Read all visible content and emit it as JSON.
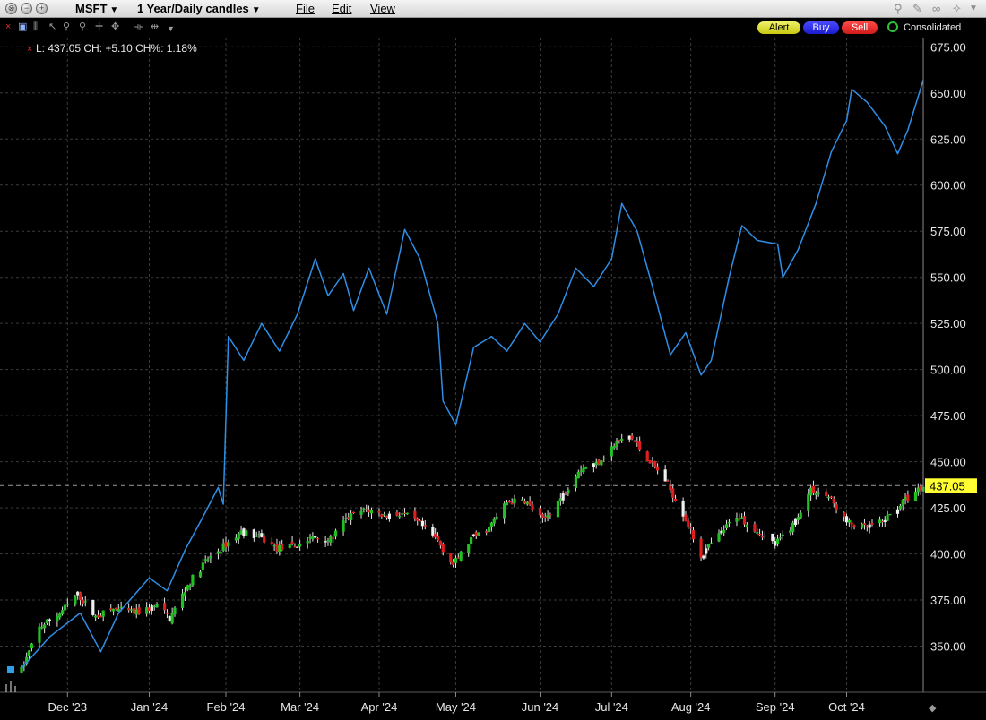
{
  "window": {
    "symbol": "MSFT",
    "timeframe": "1 Year/Daily candles",
    "menus": [
      "File",
      "Edit",
      "View"
    ]
  },
  "toolbar": {
    "alert_label": "Alert",
    "buy_label": "Buy",
    "sell_label": "Sell",
    "source_label": "Consolidated"
  },
  "readout": {
    "text": "L: 437.05 CH: +5.10 CH%: 1.18%"
  },
  "colors": {
    "background": "#000000",
    "grid": "#3a3a3a",
    "up_candle": "#22c022",
    "down_candle": "#e01e1e",
    "neutral_candle": "#f0f0f0",
    "comparison_line": "#2f8fe6",
    "last_price_box": "#ffff33"
  },
  "chart_data": {
    "type": "candlestick",
    "ylim": [
      325,
      680
    ],
    "y_ticks": [
      350,
      375,
      400,
      425,
      450,
      475,
      500,
      525,
      550,
      575,
      600,
      625,
      650,
      675
    ],
    "y_tick_labels": [
      "350.00",
      "375.00",
      "400.00",
      "425.00",
      "450.00",
      "475.00",
      "500.00",
      "525.00",
      "550.00",
      "575.00",
      "600.00",
      "625.00",
      "650.00",
      "675.00"
    ],
    "x_range": [
      "2023-11-13",
      "2024-10-31"
    ],
    "x_ticks": [
      {
        "label": "Dec '23",
        "date": "2023-12-01"
      },
      {
        "label": "Jan '24",
        "date": "2024-01-02"
      },
      {
        "label": "Feb '24",
        "date": "2024-02-01"
      },
      {
        "label": "Mar '24",
        "date": "2024-03-01"
      },
      {
        "label": "Apr '24",
        "date": "2024-04-01"
      },
      {
        "label": "May '24",
        "date": "2024-05-01"
      },
      {
        "label": "Jun '24",
        "date": "2024-06-03"
      },
      {
        "label": "Jul '24",
        "date": "2024-07-01"
      },
      {
        "label": "Aug '24",
        "date": "2024-08-01"
      },
      {
        "label": "Sep '24",
        "date": "2024-09-03"
      },
      {
        "label": "Oct '24",
        "date": "2024-10-01"
      }
    ],
    "last_price": 437.05,
    "last_price_label": "437.05",
    "grid": true,
    "price_path": [
      [
        "2023-11-13",
        337
      ],
      [
        "2023-11-20",
        360
      ],
      [
        "2023-11-28",
        368
      ],
      [
        "2023-12-05",
        378
      ],
      [
        "2023-12-12",
        366
      ],
      [
        "2023-12-19",
        370
      ],
      [
        "2023-12-28",
        368
      ],
      [
        "2024-01-05",
        372
      ],
      [
        "2024-01-10",
        365
      ],
      [
        "2024-01-17",
        383
      ],
      [
        "2024-01-24",
        396
      ],
      [
        "2024-01-31",
        404
      ],
      [
        "2024-02-07",
        412
      ],
      [
        "2024-02-14",
        409
      ],
      [
        "2024-02-21",
        403
      ],
      [
        "2024-02-28",
        404
      ],
      [
        "2024-03-06",
        409
      ],
      [
        "2024-03-13",
        408
      ],
      [
        "2024-03-20",
        420
      ],
      [
        "2024-03-27",
        424
      ],
      [
        "2024-04-03",
        421
      ],
      [
        "2024-04-10",
        422
      ],
      [
        "2024-04-17",
        416
      ],
      [
        "2024-04-24",
        407
      ],
      [
        "2024-04-30",
        394
      ],
      [
        "2024-05-07",
        408
      ],
      [
        "2024-05-14",
        414
      ],
      [
        "2024-05-21",
        428
      ],
      [
        "2024-05-28",
        429
      ],
      [
        "2024-06-04",
        418
      ],
      [
        "2024-06-11",
        430
      ],
      [
        "2024-06-18",
        446
      ],
      [
        "2024-06-25",
        449
      ],
      [
        "2024-07-02",
        459
      ],
      [
        "2024-07-08",
        464
      ],
      [
        "2024-07-15",
        452
      ],
      [
        "2024-07-22",
        440
      ],
      [
        "2024-07-29",
        422
      ],
      [
        "2024-08-05",
        399
      ],
      [
        "2024-08-12",
        410
      ],
      [
        "2024-08-19",
        421
      ],
      [
        "2024-08-26",
        414
      ],
      [
        "2024-09-03",
        405
      ],
      [
        "2024-09-10",
        416
      ],
      [
        "2024-09-17",
        435
      ],
      [
        "2024-09-24",
        431
      ],
      [
        "2024-10-01",
        417
      ],
      [
        "2024-10-08",
        414
      ],
      [
        "2024-10-15",
        417
      ],
      [
        "2024-10-22",
        427
      ],
      [
        "2024-10-31",
        437
      ]
    ],
    "comparison_line": [
      [
        "2023-11-13",
        338
      ],
      [
        "2023-11-24",
        355
      ],
      [
        "2023-12-06",
        368
      ],
      [
        "2023-12-14",
        347
      ],
      [
        "2023-12-21",
        368
      ],
      [
        "2024-01-02",
        387
      ],
      [
        "2024-01-09",
        380
      ],
      [
        "2024-01-16",
        402
      ],
      [
        "2024-01-23",
        420
      ],
      [
        "2024-01-29",
        436
      ],
      [
        "2024-01-31",
        427
      ],
      [
        "2024-02-02",
        518
      ],
      [
        "2024-02-08",
        505
      ],
      [
        "2024-02-15",
        525
      ],
      [
        "2024-02-22",
        510
      ],
      [
        "2024-02-29",
        530
      ],
      [
        "2024-03-07",
        560
      ],
      [
        "2024-03-12",
        540
      ],
      [
        "2024-03-18",
        552
      ],
      [
        "2024-03-22",
        532
      ],
      [
        "2024-03-28",
        555
      ],
      [
        "2024-04-04",
        530
      ],
      [
        "2024-04-11",
        576
      ],
      [
        "2024-04-17",
        560
      ],
      [
        "2024-04-24",
        525
      ],
      [
        "2024-04-26",
        483
      ],
      [
        "2024-05-01",
        470
      ],
      [
        "2024-05-08",
        512
      ],
      [
        "2024-05-15",
        518
      ],
      [
        "2024-05-21",
        510
      ],
      [
        "2024-05-28",
        525
      ],
      [
        "2024-06-03",
        515
      ],
      [
        "2024-06-10",
        530
      ],
      [
        "2024-06-17",
        555
      ],
      [
        "2024-06-24",
        545
      ],
      [
        "2024-07-01",
        560
      ],
      [
        "2024-07-05",
        590
      ],
      [
        "2024-07-11",
        575
      ],
      [
        "2024-07-17",
        545
      ],
      [
        "2024-07-24",
        508
      ],
      [
        "2024-07-30",
        520
      ],
      [
        "2024-08-05",
        497
      ],
      [
        "2024-08-09",
        505
      ],
      [
        "2024-08-16",
        550
      ],
      [
        "2024-08-21",
        578
      ],
      [
        "2024-08-27",
        570
      ],
      [
        "2024-09-04",
        568
      ],
      [
        "2024-09-06",
        550
      ],
      [
        "2024-09-12",
        565
      ],
      [
        "2024-09-19",
        590
      ],
      [
        "2024-09-25",
        618
      ],
      [
        "2024-10-01",
        635
      ],
      [
        "2024-10-03",
        652
      ],
      [
        "2024-10-09",
        645
      ],
      [
        "2024-10-16",
        632
      ],
      [
        "2024-10-21",
        617
      ],
      [
        "2024-10-25",
        630
      ],
      [
        "2024-10-31",
        657
      ]
    ]
  }
}
